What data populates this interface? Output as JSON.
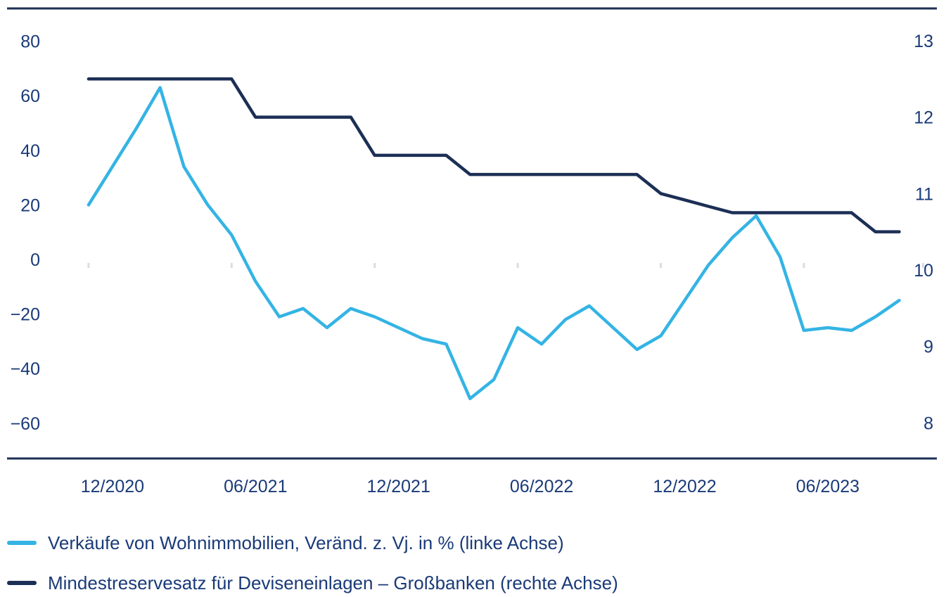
{
  "chart_data": {
    "type": "line",
    "x": [
      "11/2020",
      "12/2020",
      "01/2021",
      "02/2021",
      "03/2021",
      "04/2021",
      "05/2021",
      "06/2021",
      "07/2021",
      "08/2021",
      "09/2021",
      "10/2021",
      "11/2021",
      "12/2021",
      "01/2022",
      "02/2022",
      "03/2022",
      "04/2022",
      "05/2022",
      "06/2022",
      "07/2022",
      "08/2022",
      "09/2022",
      "10/2022",
      "11/2022",
      "12/2022",
      "01/2023",
      "02/2023",
      "03/2023",
      "04/2023",
      "05/2023",
      "06/2023",
      "07/2023",
      "08/2023",
      "09/2023",
      "10/2023"
    ],
    "x_tick_labels": [
      "12/2020",
      "06/2021",
      "12/2021",
      "06/2022",
      "12/2022",
      "06/2023"
    ],
    "y_left": {
      "ylim": [
        -70,
        80
      ],
      "ticks": [
        "80",
        "60",
        "40",
        "20",
        "0",
        "−20",
        "−40",
        "−60"
      ],
      "tick_values": [
        80,
        60,
        40,
        20,
        0,
        -20,
        -40,
        -60
      ]
    },
    "y_right": {
      "ylim": [
        7.5,
        13
      ],
      "ticks": [
        "13",
        "12",
        "11",
        "10",
        "9",
        "8"
      ],
      "tick_values": [
        13,
        12,
        11,
        10,
        9,
        8
      ]
    },
    "series": [
      {
        "name": "Verkäufe von Wohnimmobilien, Veränd. z. Vj. in % (linke Achse)",
        "axis": "left",
        "color": "#34b4e4",
        "x": [
          "12/2020",
          "01/2021",
          "02/2021",
          "03/2021",
          "04/2021",
          "05/2021",
          "06/2021",
          "07/2021",
          "08/2021",
          "09/2021",
          "10/2021",
          "11/2021",
          "12/2021",
          "01/2022",
          "02/2022",
          "03/2022",
          "04/2022",
          "05/2022",
          "06/2022",
          "07/2022",
          "08/2022",
          "09/2022",
          "10/2022",
          "11/2022",
          "12/2022",
          "01/2023",
          "02/2023",
          "03/2023",
          "04/2023",
          "05/2023",
          "06/2023",
          "07/2023",
          "08/2023",
          "09/2023",
          "10/2023"
        ],
        "values": [
          20,
          34,
          48,
          63,
          34,
          20,
          9,
          -8,
          -21,
          -18,
          -25,
          -18,
          -21,
          -25,
          -29,
          -31,
          -51,
          -44,
          -25,
          -31,
          -22,
          -17,
          -25,
          -33,
          -28,
          -15,
          -2,
          8,
          16,
          1,
          -26,
          -25,
          -26,
          -21,
          -15
        ]
      },
      {
        "name": "Mindestreservesatz für Deviseneinlagen – Großbanken (rechte Achse)",
        "axis": "right",
        "color": "#1c2f55",
        "x": [
          "12/2020",
          "01/2021",
          "02/2021",
          "03/2021",
          "04/2021",
          "05/2021",
          "06/2021",
          "07/2021",
          "08/2021",
          "09/2021",
          "10/2021",
          "11/2021",
          "12/2021",
          "01/2022",
          "02/2022",
          "03/2022",
          "04/2022",
          "05/2022",
          "06/2022",
          "07/2022",
          "08/2022",
          "09/2022",
          "10/2022",
          "11/2022",
          "12/2022",
          "01/2023",
          "02/2023",
          "03/2023",
          "04/2023",
          "05/2023",
          "06/2023",
          "07/2023",
          "08/2023",
          "09/2023",
          "10/2023"
        ],
        "values": [
          12.5,
          12.5,
          12.5,
          12.5,
          12.5,
          12.5,
          12.5,
          12,
          12,
          12,
          12,
          12,
          11.5,
          11.5,
          11.5,
          11.5,
          11.25,
          11.25,
          11.25,
          11.25,
          11.25,
          11.25,
          11.25,
          11.25,
          11,
          10.917,
          10.833,
          10.75,
          10.75,
          10.75,
          10.75,
          10.75,
          10.75,
          10.5,
          10.5
        ]
      }
    ],
    "grid": false,
    "legend_position": "bottom"
  }
}
